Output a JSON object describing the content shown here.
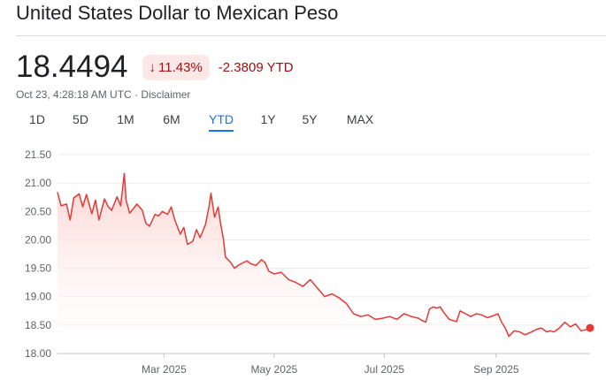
{
  "header": {
    "title": "United States Dollar to Mexican Peso"
  },
  "quote": {
    "price": "18.4494",
    "change_percent": "11.43%",
    "change_direction_icon": "arrow-down-icon",
    "change_ytd": "-2.3809 YTD",
    "timestamp": "Oct 23, 4:28:18 AM UTC",
    "separator": " · ",
    "disclaimer": "Disclaimer"
  },
  "tabs": [
    {
      "label": "1D"
    },
    {
      "label": "5D"
    },
    {
      "label": "1M"
    },
    {
      "label": "6M"
    },
    {
      "label": "YTD",
      "active": true
    },
    {
      "label": "1Y"
    },
    {
      "label": "5Y"
    },
    {
      "label": "MAX"
    }
  ],
  "colors": {
    "line": "#e53935",
    "fill_top": "#fbd0cc",
    "negative_text": "#a50e0e",
    "active_tab": "#1a73e8"
  },
  "chart_data": {
    "type": "area",
    "ylim": [
      18.0,
      21.5
    ],
    "y_ticks": [
      "21.50",
      "21.00",
      "20.50",
      "20.00",
      "19.50",
      "19.00",
      "18.50",
      "18.00"
    ],
    "x_tick_labels": [
      "Mar 2025",
      "May 2025",
      "Jul 2025",
      "Sep 2025"
    ],
    "x_tick_dates": [
      "2025-03-01",
      "2025-05-01",
      "2025-07-01",
      "2025-09-01"
    ],
    "x_range": [
      "2025-01-01",
      "2025-10-23"
    ],
    "grid": true,
    "series": [
      {
        "points": [
          [
            "2025-01-01",
            20.84
          ],
          [
            "2025-01-03",
            20.6
          ],
          [
            "2025-01-06",
            20.63
          ],
          [
            "2025-01-08",
            20.35
          ],
          [
            "2025-01-10",
            20.74
          ],
          [
            "2025-01-13",
            20.81
          ],
          [
            "2025-01-15",
            20.58
          ],
          [
            "2025-01-17",
            20.8
          ],
          [
            "2025-01-20",
            20.46
          ],
          [
            "2025-01-22",
            20.7
          ],
          [
            "2025-01-24",
            20.35
          ],
          [
            "2025-01-27",
            20.72
          ],
          [
            "2025-01-29",
            20.59
          ],
          [
            "2025-01-31",
            20.52
          ],
          [
            "2025-02-03",
            20.76
          ],
          [
            "2025-02-05",
            20.6
          ],
          [
            "2025-02-07",
            21.17
          ],
          [
            "2025-02-08",
            20.7
          ],
          [
            "2025-02-10",
            20.47
          ],
          [
            "2025-02-12",
            20.55
          ],
          [
            "2025-02-14",
            20.63
          ],
          [
            "2025-02-17",
            20.52
          ],
          [
            "2025-02-19",
            20.29
          ],
          [
            "2025-02-21",
            20.24
          ],
          [
            "2025-02-24",
            20.45
          ],
          [
            "2025-02-26",
            20.42
          ],
          [
            "2025-02-28",
            20.5
          ],
          [
            "2025-03-03",
            20.45
          ],
          [
            "2025-03-05",
            20.58
          ],
          [
            "2025-03-07",
            20.35
          ],
          [
            "2025-03-10",
            20.1
          ],
          [
            "2025-03-12",
            20.22
          ],
          [
            "2025-03-14",
            19.92
          ],
          [
            "2025-03-17",
            19.98
          ],
          [
            "2025-03-19",
            20.18
          ],
          [
            "2025-03-21",
            20.04
          ],
          [
            "2025-03-24",
            20.27
          ],
          [
            "2025-03-26",
            20.6
          ],
          [
            "2025-03-27",
            20.82
          ],
          [
            "2025-03-29",
            20.4
          ],
          [
            "2025-03-31",
            20.58
          ],
          [
            "2025-04-01",
            20.35
          ],
          [
            "2025-04-03",
            20.0
          ],
          [
            "2025-04-04",
            19.7
          ],
          [
            "2025-04-07",
            19.6
          ],
          [
            "2025-04-09",
            19.5
          ],
          [
            "2025-04-11",
            19.55
          ],
          [
            "2025-04-14",
            19.6
          ],
          [
            "2025-04-16",
            19.63
          ],
          [
            "2025-04-18",
            19.58
          ],
          [
            "2025-04-21",
            19.55
          ],
          [
            "2025-04-24",
            19.65
          ],
          [
            "2025-04-26",
            19.6
          ],
          [
            "2025-04-28",
            19.45
          ],
          [
            "2025-05-01",
            19.4
          ],
          [
            "2025-05-05",
            19.43
          ],
          [
            "2025-05-09",
            19.3
          ],
          [
            "2025-05-13",
            19.25
          ],
          [
            "2025-05-17",
            19.18
          ],
          [
            "2025-05-21",
            19.3
          ],
          [
            "2025-05-25",
            19.15
          ],
          [
            "2025-05-29",
            19.0
          ],
          [
            "2025-06-02",
            19.05
          ],
          [
            "2025-06-06",
            18.98
          ],
          [
            "2025-06-10",
            18.88
          ],
          [
            "2025-06-14",
            18.7
          ],
          [
            "2025-06-18",
            18.65
          ],
          [
            "2025-06-22",
            18.68
          ],
          [
            "2025-06-26",
            18.6
          ],
          [
            "2025-06-30",
            18.62
          ],
          [
            "2025-07-04",
            18.65
          ],
          [
            "2025-07-08",
            18.6
          ],
          [
            "2025-07-12",
            18.7
          ],
          [
            "2025-07-16",
            18.65
          ],
          [
            "2025-07-20",
            18.62
          ],
          [
            "2025-07-22",
            18.58
          ],
          [
            "2025-07-24",
            18.55
          ],
          [
            "2025-07-26",
            18.78
          ],
          [
            "2025-07-28",
            18.82
          ],
          [
            "2025-07-30",
            18.8
          ],
          [
            "2025-08-01",
            18.82
          ],
          [
            "2025-08-03",
            18.72
          ],
          [
            "2025-08-06",
            18.6
          ],
          [
            "2025-08-08",
            18.58
          ],
          [
            "2025-08-10",
            18.56
          ],
          [
            "2025-08-12",
            18.75
          ],
          [
            "2025-08-15",
            18.7
          ],
          [
            "2025-08-18",
            18.65
          ],
          [
            "2025-08-21",
            18.7
          ],
          [
            "2025-08-24",
            18.68
          ],
          [
            "2025-08-27",
            18.63
          ],
          [
            "2025-08-30",
            18.66
          ],
          [
            "2025-09-02",
            18.7
          ],
          [
            "2025-09-04",
            18.55
          ],
          [
            "2025-09-06",
            18.45
          ],
          [
            "2025-09-08",
            18.3
          ],
          [
            "2025-09-11",
            18.4
          ],
          [
            "2025-09-14",
            18.38
          ],
          [
            "2025-09-17",
            18.33
          ],
          [
            "2025-09-20",
            18.37
          ],
          [
            "2025-09-23",
            18.42
          ],
          [
            "2025-09-26",
            18.45
          ],
          [
            "2025-09-29",
            18.38
          ],
          [
            "2025-10-01",
            18.4
          ],
          [
            "2025-10-03",
            18.38
          ],
          [
            "2025-10-06",
            18.45
          ],
          [
            "2025-10-09",
            18.55
          ],
          [
            "2025-10-12",
            18.47
          ],
          [
            "2025-10-15",
            18.52
          ],
          [
            "2025-10-18",
            18.4
          ],
          [
            "2025-10-21",
            18.42
          ],
          [
            "2025-10-23",
            18.45
          ]
        ]
      }
    ]
  }
}
